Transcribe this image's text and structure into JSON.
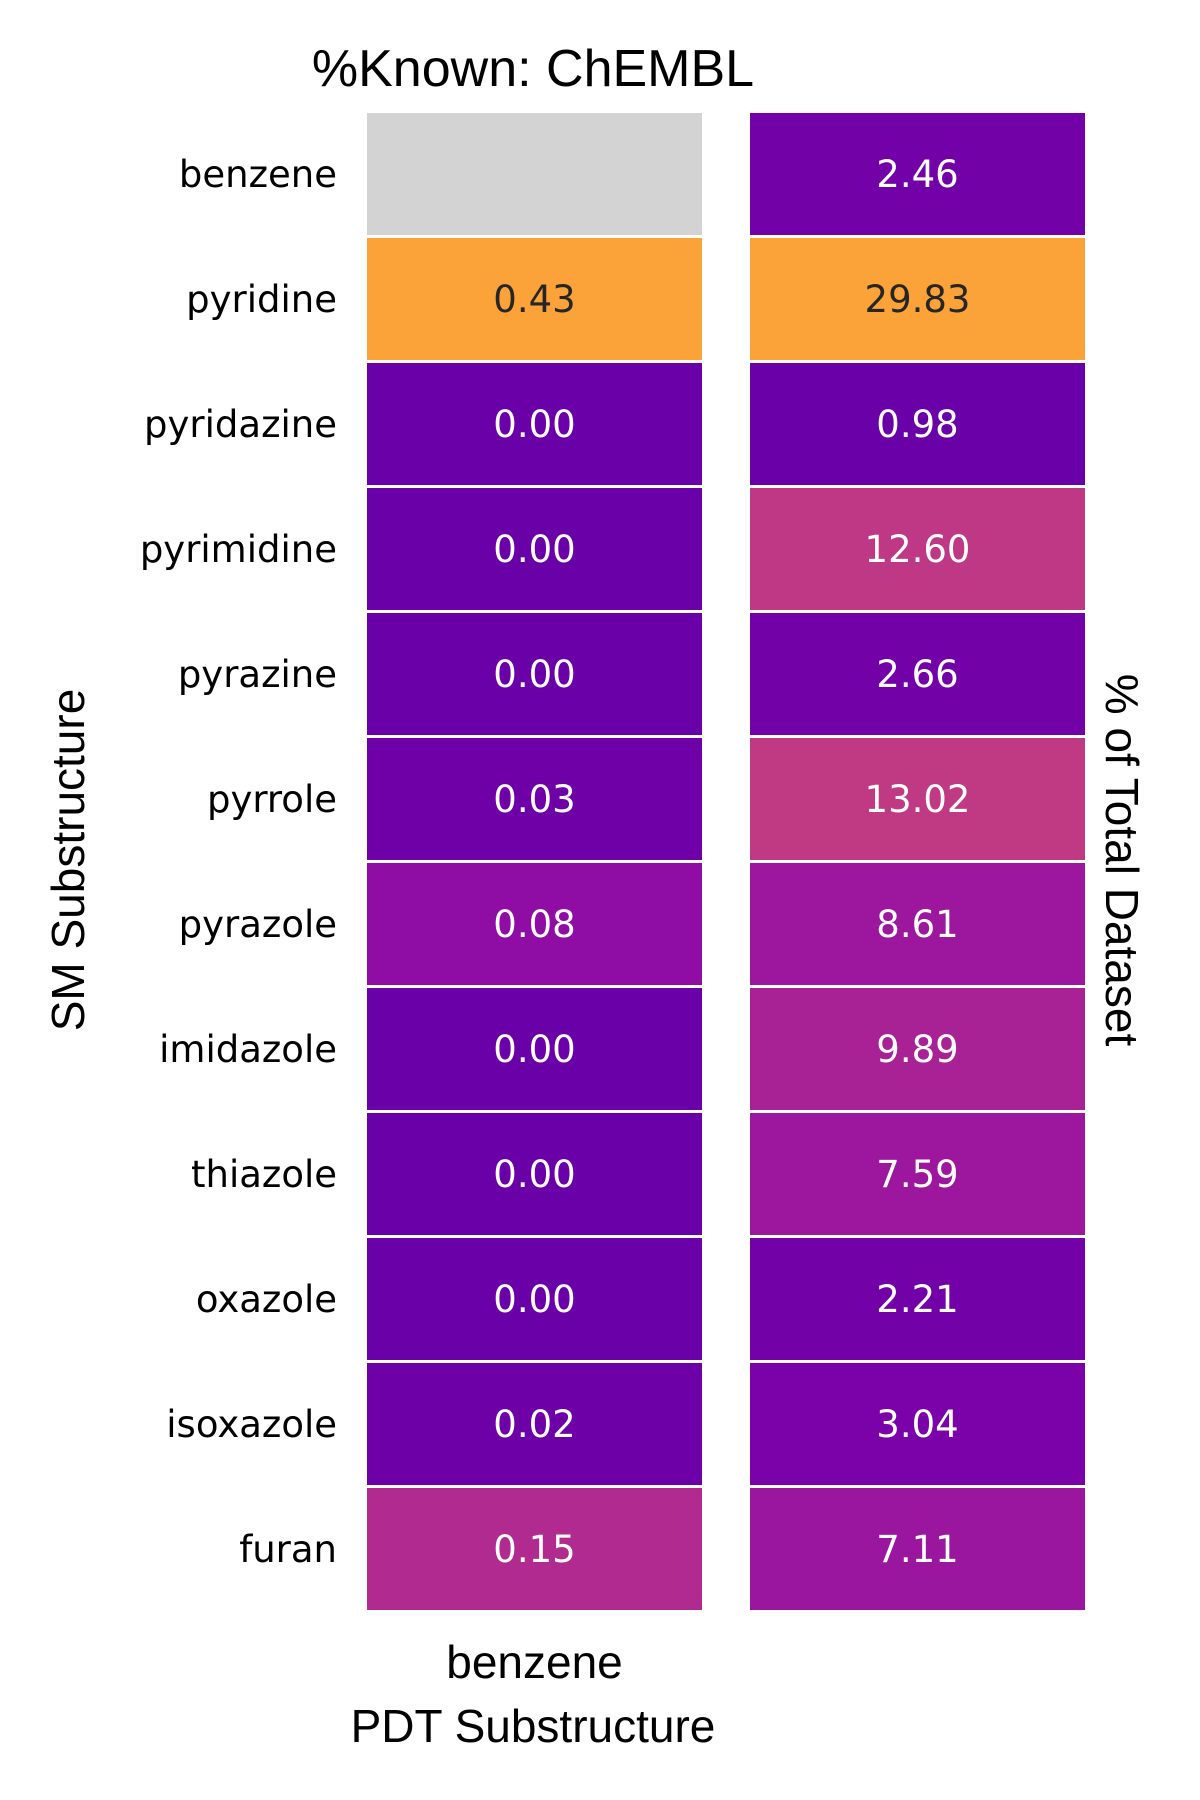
{
  "chart_data": {
    "type": "heatmap",
    "title": "%Known: ChEMBL",
    "ylabel": "SM Substructure",
    "xlabel": "PDT Substructure",
    "right_label": "% of Total Dataset",
    "rows": [
      "benzene",
      "pyridine",
      "pyridazine",
      "pyrimidine",
      "pyrazine",
      "pyrrole",
      "pyrazole",
      "imidazole",
      "thiazole",
      "oxazole",
      "isoxazole",
      "furan"
    ],
    "columns": [
      {
        "label": "benzene",
        "values": [
          null,
          0.43,
          0.0,
          0.0,
          0.0,
          0.03,
          0.08,
          0.0,
          0.0,
          0.0,
          0.02,
          0.15
        ],
        "cell_labels": [
          "",
          "0.43",
          "0.00",
          "0.00",
          "0.00",
          "0.03",
          "0.08",
          "0.00",
          "0.00",
          "0.00",
          "0.02",
          "0.15"
        ],
        "colors": [
          "#d3d3d3",
          "#fba238",
          "#6a00a8",
          "#6a00a8",
          "#6a00a8",
          "#6f00a8",
          "#8f0da4",
          "#6a00a8",
          "#6a00a8",
          "#6a00a8",
          "#6e00a8",
          "#b12a90"
        ]
      },
      {
        "label": "",
        "values": [
          2.46,
          29.83,
          0.98,
          12.6,
          2.66,
          13.02,
          8.61,
          9.89,
          7.59,
          2.21,
          3.04,
          7.11
        ],
        "cell_labels": [
          "2.46",
          "29.83",
          "0.98",
          "12.60",
          "2.66",
          "13.02",
          "8.61",
          "9.89",
          "7.59",
          "2.21",
          "3.04",
          "7.11"
        ],
        "colors": [
          "#7301a8",
          "#fba238",
          "#6a00a8",
          "#be3885",
          "#7301a8",
          "#c03a83",
          "#9c179e",
          "#a82296",
          "#9c179e",
          "#7201a8",
          "#7a02a8",
          "#9a169f"
        ]
      }
    ],
    "label_colors": {
      "dark_cell_text": "#ffffff",
      "light_cell_text": "#262626"
    },
    "grid": false,
    "legend": "none"
  }
}
